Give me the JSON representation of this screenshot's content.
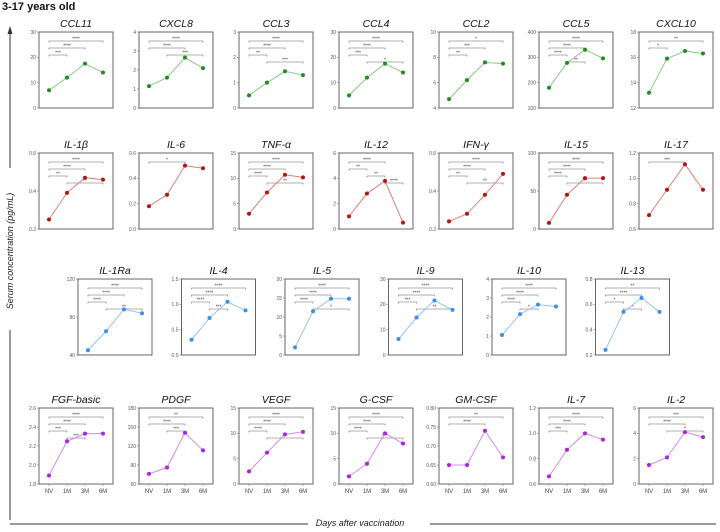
{
  "header": "3-17 years old",
  "y_axis_label": "Serum concentration (pg/mL)",
  "x_axis_label": "Days after vaccination",
  "chart_data": {
    "type": "line",
    "x": [
      "NV",
      "1M",
      "3M",
      "6M"
    ],
    "colors": {
      "green": [
        "#1b8f1b",
        "#86c986"
      ],
      "red": [
        "#b51212",
        "#d98080"
      ],
      "blue": [
        "#3b8fe6",
        "#94c3f1"
      ],
      "purple": [
        "#b21fe0",
        "#cf8bea"
      ]
    },
    "panels": [
      {
        "title": "CCL11",
        "row": 0,
        "col": 0,
        "color": "green",
        "ylim": [
          0,
          30
        ],
        "ticks": [
          "0",
          "10",
          "20",
          "30"
        ],
        "values": [
          7,
          12,
          17.5,
          14
        ],
        "sig": [
          [
            0,
            3,
            "****"
          ],
          [
            0,
            2,
            "****"
          ],
          [
            0,
            1,
            "***"
          ]
        ]
      },
      {
        "title": "CXCL8",
        "row": 0,
        "col": 1,
        "color": "green",
        "ylim": [
          0,
          4
        ],
        "ticks": [
          "0",
          "1",
          "2",
          "3",
          "4"
        ],
        "values": [
          1.15,
          1.6,
          2.65,
          2.1
        ],
        "sig": [
          [
            0,
            3,
            "****"
          ],
          [
            0,
            2,
            "****"
          ],
          [
            1,
            3,
            "***"
          ]
        ]
      },
      {
        "title": "CCL3",
        "row": 0,
        "col": 2,
        "color": "green",
        "ylim": [
          0,
          3
        ],
        "ticks": [
          "0",
          "1",
          "2",
          "3"
        ],
        "values": [
          0.5,
          1.0,
          1.45,
          1.3
        ],
        "sig": [
          [
            0,
            3,
            "****"
          ],
          [
            0,
            2,
            "****"
          ],
          [
            0,
            1,
            "**"
          ],
          [
            1,
            3,
            "***"
          ]
        ]
      },
      {
        "title": "CCL4",
        "row": 0,
        "col": 3,
        "color": "green",
        "ylim": [
          0,
          30
        ],
        "ticks": [
          "0",
          "10",
          "20",
          "30"
        ],
        "values": [
          5,
          12,
          17.5,
          14
        ],
        "sig": [
          [
            0,
            3,
            "****"
          ],
          [
            0,
            2,
            "****"
          ],
          [
            0,
            1,
            "***"
          ],
          [
            1,
            3,
            "*"
          ]
        ]
      },
      {
        "title": "CCL2",
        "row": 0,
        "col": 4,
        "color": "green",
        "ylim": [
          4,
          10
        ],
        "ticks": [
          "4",
          "6",
          "8",
          "10"
        ],
        "values": [
          4.7,
          6.2,
          7.6,
          7.5
        ],
        "sig": [
          [
            0,
            3,
            "*"
          ],
          [
            0,
            2,
            "***"
          ],
          [
            0,
            1,
            "**"
          ]
        ]
      },
      {
        "title": "CCL5",
        "row": 0,
        "col": 5,
        "color": "green",
        "ylim": [
          100,
          400
        ],
        "ticks": [
          "100",
          "200",
          "300",
          "400"
        ],
        "values": [
          180,
          278,
          330,
          296
        ],
        "sig": [
          [
            0,
            3,
            "****"
          ],
          [
            0,
            2,
            "****"
          ],
          [
            0,
            1,
            "****"
          ],
          [
            1,
            2,
            "**"
          ]
        ]
      },
      {
        "title": "CXCL10",
        "row": 0,
        "col": 6,
        "color": "green",
        "ylim": [
          12,
          18
        ],
        "ticks": [
          "12",
          "14",
          "16",
          "18"
        ],
        "values": [
          13.2,
          15.9,
          16.5,
          16.3
        ],
        "sig": [
          [
            0,
            3,
            "**"
          ],
          [
            0,
            1,
            "*"
          ]
        ]
      },
      {
        "title": "IL-1β",
        "row": 1,
        "col": 0,
        "color": "red",
        "ylim": [
          0.2,
          0.6
        ],
        "ticks": [
          "0.2",
          "0.4",
          "0.6"
        ],
        "values": [
          0.25,
          0.39,
          0.47,
          0.46
        ],
        "sig": [
          [
            0,
            3,
            "****"
          ],
          [
            0,
            2,
            "****"
          ],
          [
            0,
            1,
            "**"
          ],
          [
            1,
            3,
            "**"
          ]
        ]
      },
      {
        "title": "IL-6",
        "row": 1,
        "col": 1,
        "color": "red",
        "ylim": [
          0,
          0.6
        ],
        "ticks": [
          "0.0",
          "0.2",
          "0.4",
          "0.6"
        ],
        "values": [
          0.18,
          0.27,
          0.5,
          0.48
        ],
        "sig": [
          [
            0,
            2,
            "*"
          ]
        ]
      },
      {
        "title": "TNF-α",
        "row": 1,
        "col": 2,
        "color": "red",
        "ylim": [
          0,
          15
        ],
        "ticks": [
          "0",
          "5",
          "10",
          "15"
        ],
        "values": [
          3,
          7.2,
          10.7,
          10.2
        ],
        "sig": [
          [
            0,
            3,
            "****"
          ],
          [
            0,
            2,
            "****"
          ],
          [
            0,
            1,
            "****"
          ],
          [
            1,
            3,
            "**"
          ]
        ]
      },
      {
        "title": "IL-12",
        "row": 1,
        "col": 3,
        "color": "red",
        "ylim": [
          0,
          6
        ],
        "ticks": [
          "0",
          "2",
          "4",
          "6"
        ],
        "values": [
          1,
          2.8,
          3.8,
          0.5
        ],
        "sig": [
          [
            0,
            2,
            "****"
          ],
          [
            0,
            1,
            "**"
          ],
          [
            1,
            2,
            "**"
          ],
          [
            2,
            3,
            "****"
          ]
        ]
      },
      {
        "title": "IFN-γ",
        "row": 1,
        "col": 4,
        "color": "red",
        "ylim": [
          0.2,
          0.6
        ],
        "ticks": [
          "0.2",
          "0.4",
          "0.6"
        ],
        "values": [
          0.24,
          0.28,
          0.38,
          0.49
        ],
        "sig": [
          [
            0,
            3,
            "****"
          ],
          [
            0,
            2,
            "****"
          ],
          [
            0,
            1,
            "**"
          ],
          [
            1,
            3,
            "**"
          ]
        ]
      },
      {
        "title": "IL-15",
        "row": 1,
        "col": 5,
        "color": "red",
        "ylim": [
          0,
          100
        ],
        "ticks": [
          "0",
          "50",
          "100"
        ],
        "values": [
          8,
          45,
          67,
          67
        ],
        "sig": [
          [
            0,
            3,
            "****"
          ],
          [
            0,
            2,
            "****"
          ],
          [
            0,
            1,
            "****"
          ],
          [
            1,
            3,
            "**"
          ]
        ]
      },
      {
        "title": "IL-17",
        "row": 1,
        "col": 6,
        "color": "red",
        "ylim": [
          0.6,
          1.2
        ],
        "ticks": [
          "0.6",
          "0.8",
          "1.0",
          "1.2"
        ],
        "values": [
          0.71,
          0.91,
          1.11,
          0.91
        ],
        "sig": [
          [
            0,
            2,
            "***"
          ]
        ]
      },
      {
        "title": "IL-1Ra",
        "row": 2,
        "col": 0,
        "color": "blue",
        "ylim": [
          40,
          120
        ],
        "ticks": [
          "40",
          "80",
          "120"
        ],
        "values": [
          45,
          65,
          88,
          84
        ],
        "sig": [
          [
            0,
            3,
            "****"
          ],
          [
            0,
            2,
            "****"
          ],
          [
            0,
            1,
            "****"
          ],
          [
            1,
            3,
            "**"
          ]
        ]
      },
      {
        "title": "IL-4",
        "row": 2,
        "col": 1,
        "color": "blue",
        "ylim": [
          0,
          1.5
        ],
        "ticks": [
          "0.0",
          "0.5",
          "1.0",
          "1.5"
        ],
        "values": [
          0.3,
          0.73,
          1.05,
          0.88
        ],
        "sig": [
          [
            0,
            3,
            "****"
          ],
          [
            0,
            2,
            "****"
          ],
          [
            0,
            1,
            "****"
          ],
          [
            1,
            2,
            "***"
          ]
        ]
      },
      {
        "title": "IL-5",
        "row": 2,
        "col": 2,
        "color": "blue",
        "ylim": [
          0,
          20
        ],
        "ticks": [
          "0",
          "5",
          "10",
          "15",
          "20"
        ],
        "values": [
          2,
          11.5,
          14.8,
          14.8
        ],
        "sig": [
          [
            0,
            3,
            "****"
          ],
          [
            0,
            2,
            "****"
          ],
          [
            0,
            1,
            "****"
          ],
          [
            1,
            3,
            "*"
          ]
        ]
      },
      {
        "title": "IL-9",
        "row": 2,
        "col": 3,
        "color": "blue",
        "ylim": [
          0,
          30
        ],
        "ticks": [
          "0",
          "10",
          "20",
          "30"
        ],
        "values": [
          6.3,
          14.8,
          21.5,
          17.8
        ],
        "sig": [
          [
            0,
            3,
            "****"
          ],
          [
            0,
            2,
            "****"
          ],
          [
            0,
            1,
            "***"
          ],
          [
            1,
            3,
            "**"
          ]
        ]
      },
      {
        "title": "IL-10",
        "row": 2,
        "col": 4,
        "color": "blue",
        "ylim": [
          0,
          4
        ],
        "ticks": [
          "0",
          "1",
          "2",
          "3",
          "4"
        ],
        "values": [
          1.05,
          2.15,
          2.65,
          2.55
        ],
        "sig": [
          [
            0,
            3,
            "****"
          ],
          [
            0,
            2,
            "****"
          ],
          [
            0,
            1,
            "****"
          ],
          [
            1,
            2,
            "*"
          ]
        ]
      },
      {
        "title": "IL-13",
        "row": 2,
        "col": 5,
        "color": "blue",
        "ylim": [
          0.2,
          0.8
        ],
        "ticks": [
          "0.2",
          "0.4",
          "0.6",
          "0.8"
        ],
        "values": [
          0.24,
          0.54,
          0.65,
          0.54
        ],
        "sig": [
          [
            0,
            3,
            "**"
          ],
          [
            0,
            2,
            "****"
          ],
          [
            0,
            1,
            "*"
          ],
          [
            1,
            2,
            "*"
          ]
        ]
      },
      {
        "title": "FGF-basic",
        "row": 3,
        "col": 0,
        "color": "purple",
        "ylim": [
          1.8,
          2.6
        ],
        "ticks": [
          "1.8",
          "2.0",
          "2.2",
          "2.4",
          "2.6"
        ],
        "values": [
          1.89,
          2.25,
          2.33,
          2.33
        ],
        "sig": [
          [
            0,
            3,
            "****"
          ],
          [
            0,
            2,
            "****"
          ],
          [
            0,
            1,
            "***"
          ],
          [
            1,
            2,
            "***"
          ]
        ]
      },
      {
        "title": "PDGF",
        "row": 3,
        "col": 1,
        "color": "purple",
        "ylim": [
          60,
          180
        ],
        "ticks": [
          "60",
          "90",
          "120",
          "150",
          "180"
        ],
        "values": [
          76,
          86,
          141,
          113
        ],
        "sig": [
          [
            0,
            3,
            "**"
          ],
          [
            0,
            2,
            "****"
          ],
          [
            1,
            2,
            "***"
          ]
        ]
      },
      {
        "title": "VEGF",
        "row": 3,
        "col": 2,
        "color": "purple",
        "ylim": [
          0,
          15
        ],
        "ticks": [
          "0",
          "5",
          "10",
          "15"
        ],
        "values": [
          2.5,
          6.2,
          9.8,
          10.3
        ],
        "sig": [
          [
            0,
            3,
            "****"
          ],
          [
            0,
            2,
            "****"
          ],
          [
            0,
            1,
            "****"
          ],
          [
            1,
            3,
            "**"
          ]
        ]
      },
      {
        "title": "G-CSF",
        "row": 3,
        "col": 3,
        "color": "purple",
        "ylim": [
          0,
          15
        ],
        "ticks": [
          "0",
          "5",
          "10",
          "15"
        ],
        "values": [
          1.5,
          4,
          10,
          8
        ],
        "sig": [
          [
            0,
            3,
            "****"
          ],
          [
            0,
            2,
            "****"
          ],
          [
            0,
            1,
            "****"
          ],
          [
            1,
            3,
            "***"
          ]
        ]
      },
      {
        "title": "GM-CSF",
        "row": 3,
        "col": 4,
        "color": "purple",
        "ylim": [
          0.6,
          0.8
        ],
        "ticks": [
          "0.60",
          "0.65",
          "0.70",
          "0.75",
          "0.80"
        ],
        "values": [
          0.65,
          0.65,
          0.74,
          0.67
        ],
        "sig": [
          [
            0,
            3,
            "**"
          ],
          [
            0,
            2,
            "****"
          ]
        ]
      },
      {
        "title": "IL-7",
        "row": 3,
        "col": 5,
        "color": "purple",
        "ylim": [
          0.6,
          1.2
        ],
        "ticks": [
          "0.6",
          "0.8",
          "1.0",
          "1.2"
        ],
        "values": [
          0.66,
          0.87,
          1.0,
          0.95
        ],
        "sig": [
          [
            0,
            3,
            "****"
          ],
          [
            0,
            2,
            "****"
          ],
          [
            0,
            1,
            "***"
          ]
        ]
      },
      {
        "title": "IL-2",
        "row": 3,
        "col": 6,
        "color": "purple",
        "ylim": [
          0,
          6
        ],
        "ticks": [
          "0",
          "2",
          "4",
          "6"
        ],
        "values": [
          1.5,
          2.1,
          4.1,
          3.7
        ],
        "sig": [
          [
            0,
            3,
            "***"
          ],
          [
            0,
            2,
            "****"
          ],
          [
            1,
            3,
            "*"
          ]
        ]
      }
    ]
  }
}
